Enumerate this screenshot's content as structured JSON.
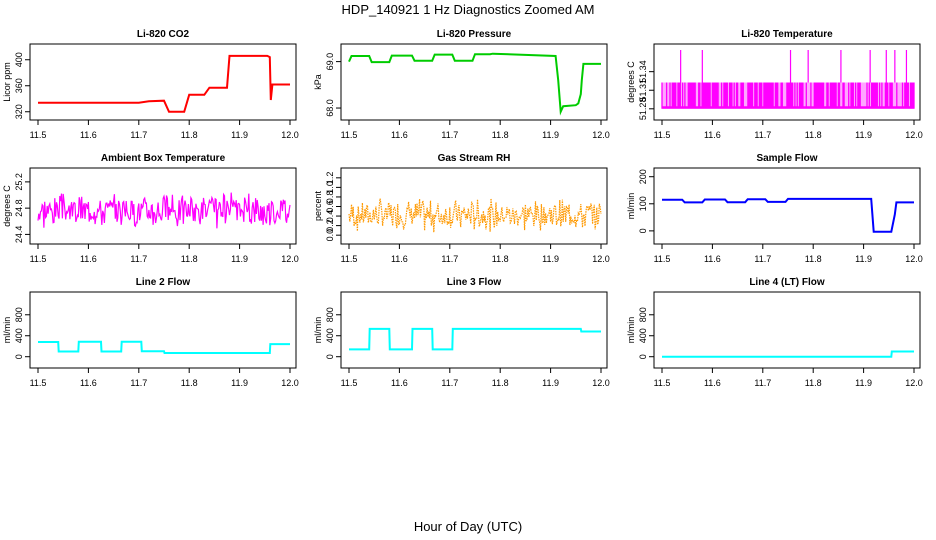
{
  "figure": {
    "title": "HDP_140921  1 Hz Diagnostics Zoomed AM",
    "xlabel": "Hour of Day (UTC)"
  },
  "chart_data": [
    {
      "type": "line",
      "title": "Li-820 CO2",
      "ylabel": "Licor ppm",
      "color": "#ff0000",
      "xlim": [
        11.5,
        12.0
      ],
      "ylim": [
        315,
        415
      ],
      "xticks": [
        "11.5",
        "11.6",
        "11.7",
        "11.8",
        "11.9",
        "12.0"
      ],
      "yticks": [
        {
          "v": 320,
          "label": "320"
        },
        {
          "v": 360,
          "label": "360"
        },
        {
          "v": 400,
          "label": "400"
        }
      ],
      "series": [
        {
          "x": [
            11.5,
            11.7,
            11.72,
            11.75,
            11.76,
            11.79,
            11.8,
            11.83,
            11.84,
            11.875,
            11.88,
            11.955,
            11.96,
            11.962,
            11.965,
            12.0
          ],
          "y": [
            334,
            334,
            336,
            337,
            320,
            320,
            346,
            346,
            357,
            357,
            406,
            406,
            404,
            338,
            362,
            362
          ]
        }
      ]
    },
    {
      "type": "line",
      "title": "Li-820 Pressure",
      "ylabel": "kPa",
      "color": "#00cc00",
      "xlim": [
        11.5,
        12.0
      ],
      "ylim": [
        67.85,
        69.25
      ],
      "xticks": [
        "11.5",
        "11.6",
        "11.7",
        "11.8",
        "11.9",
        "12.0"
      ],
      "yticks": [
        {
          "v": 68.0,
          "label": "68.0"
        },
        {
          "v": 69.0,
          "label": "69.0"
        }
      ],
      "series": [
        {
          "x": [
            11.5,
            11.505,
            11.54,
            11.545,
            11.58,
            11.585,
            11.625,
            11.63,
            11.665,
            11.67,
            11.705,
            11.71,
            11.745,
            11.75,
            11.78,
            11.785,
            11.91,
            11.915,
            11.92,
            11.925,
            11.95,
            11.955,
            11.96,
            11.962,
            11.965,
            12.0
          ],
          "y": [
            69.0,
            69.12,
            69.12,
            68.99,
            68.99,
            69.13,
            69.13,
            69.02,
            69.02,
            69.15,
            69.15,
            69.02,
            69.02,
            69.16,
            69.16,
            69.17,
            69.12,
            68.6,
            67.92,
            68.04,
            68.06,
            68.1,
            68.3,
            68.6,
            68.95,
            68.95
          ]
        }
      ]
    },
    {
      "type": "step",
      "title": "Li-820 Temperature",
      "ylabel": "degrees C",
      "color": "#ff00ff",
      "xlim": [
        11.5,
        12.0
      ],
      "ylim": [
        51.27,
        51.375
      ],
      "xticks": [
        "11.5",
        "11.6",
        "11.7",
        "11.8",
        "11.9",
        "12.0"
      ],
      "yticks": [
        {
          "v": 51.28,
          "label": "51.28"
        },
        {
          "v": 51.31,
          "label": "51.31"
        },
        {
          "v": 51.34,
          "label": "51.34"
        }
      ],
      "low": 51.28,
      "high": 51.3225,
      "spikes": [
        11.537,
        11.58,
        11.755,
        11.79,
        11.855,
        11.913,
        11.945,
        11.962,
        11.985
      ]
    },
    {
      "type": "noise",
      "title": "Ambient Box Temperature",
      "ylabel": "degrees C",
      "color": "#ff00ff",
      "xlim": [
        11.5,
        12.0
      ],
      "ylim": [
        24.33,
        25.32
      ],
      "xticks": [
        "11.5",
        "11.6",
        "11.7",
        "11.8",
        "11.9",
        "12.0"
      ],
      "yticks": [
        {
          "v": 24.4,
          "label": "24.4"
        },
        {
          "v": 24.8,
          "label": "24.8"
        },
        {
          "v": 25.2,
          "label": "25.2"
        }
      ],
      "center": 24.77,
      "amplitude": 0.42,
      "seed": 3
    },
    {
      "type": "noise",
      "title": "Gas Stream RH",
      "ylabel": "percent",
      "color": "#ff9900",
      "xlim": [
        11.5,
        12.0
      ],
      "ylim": [
        -0.08,
        1.28
      ],
      "xticks": [
        "11.5",
        "11.6",
        "11.7",
        "11.8",
        "11.9",
        "12.0"
      ],
      "yticks": [
        {
          "v": 0.0,
          "label": "0.0"
        },
        {
          "v": 0.2,
          "label": "0.2"
        },
        {
          "v": 0.4,
          "label": "0.4"
        },
        {
          "v": 0.6,
          "label": "0.6"
        },
        {
          "v": 0.8,
          "label": "0.8"
        },
        {
          "v": 1.0,
          "label": "1.0"
        },
        {
          "v": 1.2,
          "label": "1.2"
        }
      ],
      "center": 0.42,
      "amplitude": 0.55,
      "seed": 7
    },
    {
      "type": "line",
      "title": "Sample Flow",
      "ylabel": "ml/min",
      "color": "#0000ff",
      "xlim": [
        11.5,
        12.0
      ],
      "ylim": [
        -30,
        210
      ],
      "xticks": [
        "11.5",
        "11.6",
        "11.7",
        "11.8",
        "11.9",
        "12.0"
      ],
      "yticks": [
        {
          "v": 0,
          "label": "0"
        },
        {
          "v": 100,
          "label": "100"
        },
        {
          "v": 200,
          "label": "200"
        }
      ],
      "series": [
        {
          "x": [
            11.5,
            11.54,
            11.545,
            11.58,
            11.585,
            11.625,
            11.63,
            11.665,
            11.67,
            11.705,
            11.71,
            11.745,
            11.75,
            11.915,
            11.92,
            11.955,
            11.962,
            11.965,
            12.0
          ],
          "y": [
            115,
            115,
            105,
            105,
            116,
            116,
            106,
            106,
            117,
            117,
            107,
            107,
            118,
            118,
            -3,
            -3,
            60,
            105,
            105
          ]
        }
      ]
    },
    {
      "type": "line",
      "title": "Line 2 Flow",
      "ylabel": "ml/min",
      "color": "#00ffff",
      "xlim": [
        11.5,
        12.0
      ],
      "ylim": [
        -120,
        1120
      ],
      "xticks": [
        "11.5",
        "11.6",
        "11.7",
        "11.8",
        "11.9",
        "12.0"
      ],
      "yticks": [
        {
          "v": 0,
          "label": "0"
        },
        {
          "v": 400,
          "label": "400"
        },
        {
          "v": 800,
          "label": "800"
        }
      ],
      "series": [
        {
          "x": [
            11.5,
            11.54,
            11.541,
            11.58,
            11.581,
            11.625,
            11.626,
            11.665,
            11.666,
            11.705,
            11.706,
            11.75,
            11.751,
            11.96,
            11.961,
            12.0
          ],
          "y": [
            280,
            280,
            100,
            100,
            285,
            285,
            100,
            100,
            285,
            285,
            105,
            105,
            70,
            70,
            240,
            240
          ]
        }
      ]
    },
    {
      "type": "line",
      "title": "Line 3 Flow",
      "ylabel": "ml/min",
      "color": "#00ffff",
      "xlim": [
        11.5,
        12.0
      ],
      "ylim": [
        -120,
        1120
      ],
      "xticks": [
        "11.5",
        "11.6",
        "11.7",
        "11.8",
        "11.9",
        "12.0"
      ],
      "yticks": [
        {
          "v": 0,
          "label": "0"
        },
        {
          "v": 400,
          "label": "400"
        },
        {
          "v": 800,
          "label": "800"
        }
      ],
      "series": [
        {
          "x": [
            11.5,
            11.54,
            11.541,
            11.58,
            11.581,
            11.625,
            11.626,
            11.665,
            11.666,
            11.705,
            11.706,
            11.96,
            11.961,
            12.0
          ],
          "y": [
            140,
            140,
            530,
            530,
            140,
            140,
            530,
            530,
            140,
            140,
            530,
            530,
            480,
            480
          ]
        }
      ]
    },
    {
      "type": "line",
      "title": "Line 4 (LT) Flow",
      "ylabel": "ml/min",
      "color": "#00ffff",
      "xlim": [
        11.5,
        12.0
      ],
      "ylim": [
        -120,
        1120
      ],
      "xticks": [
        "11.5",
        "11.6",
        "11.7",
        "11.8",
        "11.9",
        "12.0"
      ],
      "yticks": [
        {
          "v": 0,
          "label": "0"
        },
        {
          "v": 400,
          "label": "400"
        },
        {
          "v": 800,
          "label": "800"
        }
      ],
      "series": [
        {
          "x": [
            11.5,
            11.955,
            11.956,
            12.0
          ],
          "y": [
            0,
            0,
            100,
            100
          ]
        }
      ]
    }
  ]
}
